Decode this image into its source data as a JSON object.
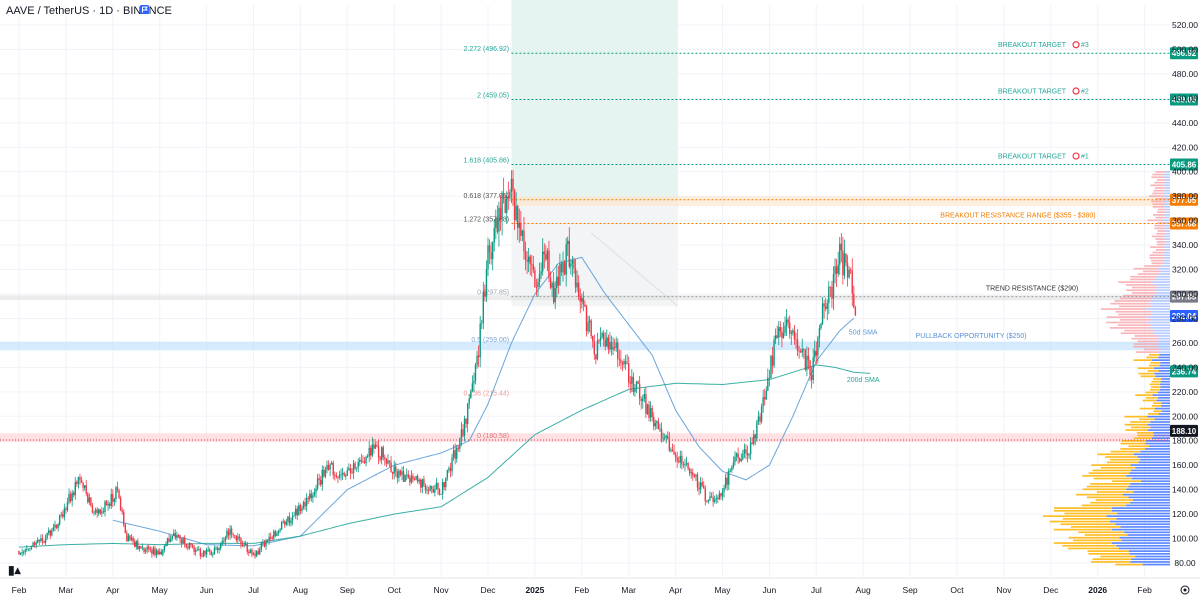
{
  "header": {
    "symbol": "AAVE",
    "separator": "/",
    "quote": "TetherUS",
    "interval": "1D",
    "exchange": "BINANCE",
    "flag_icon": "flag-icon",
    "flag_color": "#2962ff"
  },
  "colors": {
    "up": "#089981",
    "down": "#f23645",
    "target_line": "#089981",
    "resistance_line": "#f57c00",
    "trend_line": "#9e9e9e",
    "pullback_zone": "#bbdefb",
    "support_zone": "#ffcdd2",
    "sma50": "#5b9bd5",
    "sma200": "#26a69a",
    "vp_up": "#2962ff",
    "vp_down": "#ffb300",
    "vp_top": "#f7a8ae"
  },
  "chart_data": {
    "type": "candlestick",
    "y_axis": {
      "ylim": [
        70,
        530
      ],
      "ticks": [
        80,
        100,
        120,
        140,
        160,
        180,
        200,
        220,
        240,
        260,
        280,
        300,
        320,
        340,
        360,
        380,
        400,
        420,
        440,
        460,
        480,
        500,
        520
      ],
      "labels": [
        "80.00",
        "100.00",
        "120.00",
        "140.00",
        "160.00",
        "180.00",
        "200.00",
        "220.00",
        "240.00",
        "260.00",
        "280.00",
        "300.00",
        "320.00",
        "340.00",
        "360.00",
        "380.00",
        "400.00",
        "420.00",
        "440.00",
        "460.00",
        "480.00",
        "500.00",
        "520.00"
      ]
    },
    "x_axis": {
      "labels": [
        {
          "label": "Feb",
          "m": 0
        },
        {
          "label": "Mar",
          "m": 1
        },
        {
          "label": "Apr",
          "m": 2
        },
        {
          "label": "May",
          "m": 3
        },
        {
          "label": "Jun",
          "m": 4
        },
        {
          "label": "Jul",
          "m": 5
        },
        {
          "label": "Aug",
          "m": 6
        },
        {
          "label": "Sep",
          "m": 7
        },
        {
          "label": "Oct",
          "m": 8
        },
        {
          "label": "Nov",
          "m": 9
        },
        {
          "label": "Dec",
          "m": 10
        },
        {
          "label": "2025",
          "m": 11,
          "year": true
        },
        {
          "label": "Feb",
          "m": 12
        },
        {
          "label": "Mar",
          "m": 13
        },
        {
          "label": "Apr",
          "m": 14
        },
        {
          "label": "May",
          "m": 15
        },
        {
          "label": "Jun",
          "m": 16
        },
        {
          "label": "Jul",
          "m": 17
        },
        {
          "label": "Aug",
          "m": 18
        },
        {
          "label": "Sep",
          "m": 19
        },
        {
          "label": "Oct",
          "m": 20
        },
        {
          "label": "Nov",
          "m": 21
        },
        {
          "label": "Dec",
          "m": 22
        },
        {
          "label": "2026",
          "m": 23,
          "year": true
        },
        {
          "label": "Feb",
          "m": 24
        }
      ]
    },
    "price_anchors": [
      [
        0,
        90
      ],
      [
        0.5,
        98
      ],
      [
        0.8,
        110
      ],
      [
        1.1,
        135
      ],
      [
        1.3,
        150
      ],
      [
        1.6,
        120
      ],
      [
        1.9,
        128
      ],
      [
        2.1,
        140
      ],
      [
        2.3,
        100
      ],
      [
        2.6,
        92
      ],
      [
        3.0,
        88
      ],
      [
        3.3,
        105
      ],
      [
        3.6,
        95
      ],
      [
        3.9,
        88
      ],
      [
        4.2,
        90
      ],
      [
        4.5,
        108
      ],
      [
        4.8,
        95
      ],
      [
        5.0,
        85
      ],
      [
        5.3,
        100
      ],
      [
        5.6,
        110
      ],
      [
        6.0,
        125
      ],
      [
        6.3,
        140
      ],
      [
        6.6,
        160
      ],
      [
        6.9,
        150
      ],
      [
        7.2,
        160
      ],
      [
        7.5,
        172
      ],
      [
        7.8,
        168
      ],
      [
        8.0,
        155
      ],
      [
        8.3,
        148
      ],
      [
        8.6,
        145
      ],
      [
        9.0,
        140
      ],
      [
        9.2,
        160
      ],
      [
        9.4,
        180
      ],
      [
        9.6,
        210
      ],
      [
        9.8,
        255
      ],
      [
        10.0,
        330
      ],
      [
        10.3,
        370
      ],
      [
        10.5,
        385
      ],
      [
        10.8,
        330
      ],
      [
        11.0,
        310
      ],
      [
        11.2,
        340
      ],
      [
        11.4,
        300
      ],
      [
        11.7,
        335
      ],
      [
        12.0,
        290
      ],
      [
        12.3,
        255
      ],
      [
        12.6,
        265
      ],
      [
        12.9,
        240
      ],
      [
        13.2,
        220
      ],
      [
        13.5,
        200
      ],
      [
        13.8,
        180
      ],
      [
        14.1,
        165
      ],
      [
        14.4,
        150
      ],
      [
        14.7,
        130
      ],
      [
        15.0,
        140
      ],
      [
        15.3,
        165
      ],
      [
        15.6,
        175
      ],
      [
        15.9,
        215
      ],
      [
        16.1,
        255
      ],
      [
        16.3,
        275
      ],
      [
        16.6,
        260
      ],
      [
        16.9,
        235
      ],
      [
        17.1,
        280
      ],
      [
        17.3,
        300
      ],
      [
        17.5,
        330
      ],
      [
        17.7,
        318
      ],
      [
        17.85,
        282
      ]
    ],
    "sma50": [
      [
        2.0,
        115
      ],
      [
        3.0,
        106
      ],
      [
        4.0,
        95
      ],
      [
        5.0,
        94
      ],
      [
        6.0,
        102
      ],
      [
        7.0,
        140
      ],
      [
        8.0,
        160
      ],
      [
        9.0,
        170
      ],
      [
        9.6,
        180
      ],
      [
        10.0,
        210
      ],
      [
        10.5,
        260
      ],
      [
        11.0,
        300
      ],
      [
        11.5,
        325
      ],
      [
        12.0,
        330
      ],
      [
        12.5,
        300
      ],
      [
        13.0,
        275
      ],
      [
        13.5,
        250
      ],
      [
        14.0,
        205
      ],
      [
        14.5,
        175
      ],
      [
        15.0,
        155
      ],
      [
        15.5,
        148
      ],
      [
        16.0,
        160
      ],
      [
        16.5,
        200
      ],
      [
        17.0,
        245
      ],
      [
        17.5,
        270
      ],
      [
        17.85,
        282
      ]
    ],
    "sma200": [
      [
        0,
        93
      ],
      [
        1.0,
        95
      ],
      [
        2.0,
        96
      ],
      [
        3.0,
        95
      ],
      [
        4.0,
        96
      ],
      [
        5.0,
        96
      ],
      [
        6.0,
        102
      ],
      [
        7.0,
        112
      ],
      [
        8.0,
        120
      ],
      [
        9.0,
        126
      ],
      [
        10.0,
        150
      ],
      [
        11.0,
        185
      ],
      [
        12.0,
        205
      ],
      [
        13.0,
        222
      ],
      [
        14.0,
        227
      ],
      [
        15.0,
        226
      ],
      [
        16.0,
        230
      ],
      [
        16.5,
        236
      ],
      [
        17.0,
        242
      ],
      [
        17.4,
        240
      ],
      [
        17.8,
        236
      ],
      [
        18.2,
        235
      ]
    ],
    "levels": [
      {
        "label": "2.272 (496.92)",
        "price": 496.92,
        "kind": "target",
        "annotation": "BREAKOUT TARGET",
        "target_no": "#3",
        "tag": "496.92"
      },
      {
        "label": "2 (459.05)",
        "price": 459.05,
        "kind": "target",
        "annotation": "BREAKOUT TARGET",
        "target_no": "#2",
        "tag": "459.05"
      },
      {
        "label": "1.618 (405.86)",
        "price": 405.86,
        "kind": "target",
        "annotation": "BREAKOUT TARGET",
        "target_no": "#1",
        "tag": "405.86"
      },
      {
        "label": "0.618 (377.05)",
        "price": 377.05,
        "kind": "resistance",
        "tag": "377.05"
      },
      {
        "label": "1.272 (357.68)",
        "price": 357.68,
        "kind": "resistance",
        "annotation": "BREAKOUT RESISTANCE RANGE ($355 - $380)",
        "tag": "357.68"
      },
      {
        "label": "0 (297.85)",
        "price": 297.85,
        "kind": "trend",
        "annotation": "TREND RESISTANCE ($290)",
        "tag": "297.85"
      },
      {
        "label": "0.5 (259.00)",
        "price": 259,
        "kind": "pullback",
        "annotation": "PULLBACK OPPORTUNITY ($250)"
      },
      {
        "label": "0.236 (215.44)",
        "price": 215.44,
        "kind": "fib"
      },
      {
        "label": "0 (180.58)",
        "price": 180.58,
        "kind": "support"
      }
    ],
    "price_tags": [
      {
        "value": "282.04",
        "price": 282.04,
        "color": "#2962ff"
      },
      {
        "value": "236.74",
        "price": 236.74,
        "color": "#089981"
      },
      {
        "value": "188.10",
        "price": 188.1,
        "color": "#131722"
      }
    ],
    "annotations": [
      {
        "text": "50d SMA",
        "m": 18.0,
        "price": 267,
        "color": "#5b9bd5"
      },
      {
        "text": "200d SMA",
        "m": 18.0,
        "price": 228,
        "color": "#26a69a"
      }
    ]
  }
}
